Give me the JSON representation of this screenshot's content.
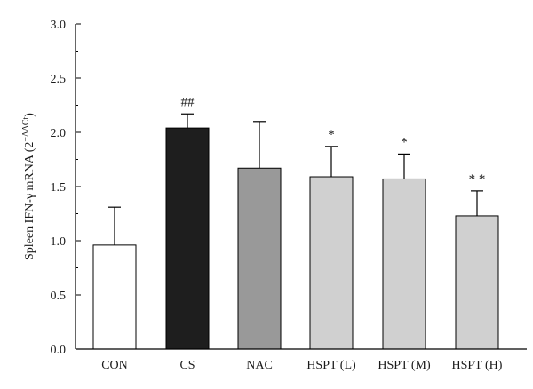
{
  "chart_data": {
    "type": "bar",
    "ylabel": "Spleen IFN-γ mRNA (2",
    "ylabel_sup": "−ΔΔCt",
    "ylabel_close": ")",
    "ylim": [
      0,
      3.0
    ],
    "yticks": [
      "0.0",
      "0.5",
      "1.0",
      "1.5",
      "2.0",
      "2.5",
      "3.0"
    ],
    "grid": false,
    "categories": [
      "CON",
      "CS",
      "NAC",
      "HSPT (L)",
      "HSPT (M)",
      "HSPT (H)"
    ],
    "values": [
      0.96,
      2.04,
      1.67,
      1.59,
      1.57,
      1.23
    ],
    "errors": [
      0.35,
      0.13,
      0.43,
      0.28,
      0.23,
      0.23
    ],
    "significance": [
      "",
      "##",
      "",
      "*",
      "*",
      "* *"
    ],
    "colors": [
      "#ffffff",
      "#1e1e1e",
      "#999999",
      "#d0d0d0",
      "#d0d0d0",
      "#d0d0d0"
    ]
  }
}
